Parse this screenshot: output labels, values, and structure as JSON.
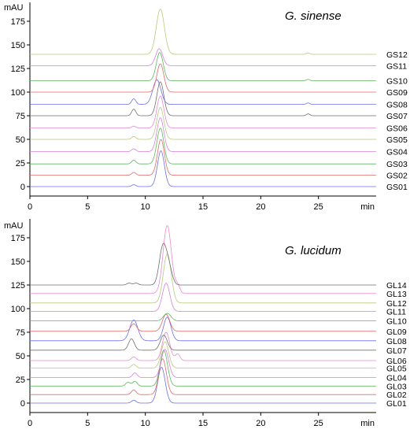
{
  "chart_data": [
    {
      "type": "line",
      "title": "G. sinense",
      "ylabel": "mAU",
      "xlabel": "min",
      "xlim": [
        0,
        30
      ],
      "ylim": [
        -10,
        195
      ],
      "xticks": [
        0,
        5,
        10,
        15,
        20,
        25
      ],
      "yticks": [
        0,
        25,
        50,
        75,
        100,
        125,
        150,
        175
      ],
      "series": [
        {
          "name": "GS01",
          "baseline": 0,
          "color": "#6e6ee8",
          "peaks": [
            [
              9.0,
              2,
              0.18
            ],
            [
              11.35,
              38,
              0.3
            ]
          ]
        },
        {
          "name": "GS02",
          "baseline": 12,
          "color": "#e06a6a",
          "peaks": [
            [
              9.0,
              3,
              0.18
            ],
            [
              11.35,
              38,
              0.3
            ]
          ]
        },
        {
          "name": "GS03",
          "baseline": 24,
          "color": "#5cb85c",
          "peaks": [
            [
              9.0,
              4,
              0.18
            ],
            [
              11.3,
              38,
              0.3
            ]
          ]
        },
        {
          "name": "GS04",
          "baseline": 37,
          "color": "#d982d9",
          "peaks": [
            [
              9.0,
              3,
              0.18
            ],
            [
              11.3,
              36,
              0.3
            ]
          ]
        },
        {
          "name": "GS05",
          "baseline": 50,
          "color": "#b8c97a",
          "peaks": [
            [
              9.0,
              3,
              0.18
            ],
            [
              11.3,
              34,
              0.3
            ]
          ]
        },
        {
          "name": "GS06",
          "baseline": 62,
          "color": "#e98ad0",
          "peaks": [
            [
              9.0,
              2,
              0.18
            ],
            [
              11.3,
              34,
              0.3
            ]
          ]
        },
        {
          "name": "GS07",
          "baseline": 75,
          "color": "#707070",
          "peaks": [
            [
              9.0,
              7,
              0.18
            ],
            [
              11.3,
              36,
              0.3
            ],
            [
              24.1,
              2,
              0.15
            ]
          ]
        },
        {
          "name": "GS08",
          "baseline": 87,
          "color": "#6e6ee8",
          "peaks": [
            [
              9.0,
              6,
              0.18
            ],
            [
              11.0,
              26,
              0.35
            ],
            [
              24.1,
              1.5,
              0.15
            ]
          ]
        },
        {
          "name": "GS09",
          "baseline": 100,
          "color": "#e06a6a",
          "peaks": [
            [
              11.3,
              30,
              0.3
            ]
          ]
        },
        {
          "name": "GS10",
          "baseline": 112,
          "color": "#5cb85c",
          "peaks": [
            [
              11.25,
              30,
              0.3
            ],
            [
              24.1,
              1.5,
              0.15
            ]
          ]
        },
        {
          "name": "GS11",
          "baseline": 128,
          "color": "#d982d9",
          "peaks": [
            [
              11.2,
              18,
              0.3
            ]
          ]
        },
        {
          "name": "GS12",
          "baseline": 140,
          "color": "#b8c97a",
          "peaks": [
            [
              11.3,
              48,
              0.35
            ],
            [
              24.1,
              1.5,
              0.15
            ]
          ]
        }
      ]
    },
    {
      "type": "line",
      "title": "G. lucidum",
      "ylabel": "mAU",
      "xlabel": "min",
      "xlim": [
        0,
        30
      ],
      "ylim": [
        -10,
        195
      ],
      "xticks": [
        0,
        5,
        10,
        15,
        20,
        25
      ],
      "yticks": [
        0,
        25,
        50,
        75,
        100,
        125,
        150,
        175
      ],
      "series": [
        {
          "name": "GL01",
          "baseline": 0,
          "color": "#6e6ee8",
          "peaks": [
            [
              9.0,
              3,
              0.2
            ],
            [
              11.4,
              38,
              0.32
            ]
          ]
        },
        {
          "name": "GL02",
          "baseline": 9,
          "color": "#e06a6a",
          "peaks": [
            [
              9.0,
              5,
              0.2
            ],
            [
              11.5,
              38,
              0.32
            ]
          ]
        },
        {
          "name": "GL03",
          "baseline": 18,
          "color": "#5cb85c",
          "peaks": [
            [
              8.5,
              4,
              0.2
            ],
            [
              9.1,
              5,
              0.2
            ],
            [
              11.6,
              38,
              0.32
            ]
          ]
        },
        {
          "name": "GL04",
          "baseline": 27,
          "color": "#d982d9",
          "peaks": [
            [
              9.1,
              5,
              0.2
            ],
            [
              11.7,
              30,
              0.32
            ]
          ]
        },
        {
          "name": "GL05",
          "baseline": 37,
          "color": "#b8c97a",
          "peaks": [
            [
              9.0,
              4,
              0.2
            ],
            [
              11.7,
              28,
              0.32
            ]
          ]
        },
        {
          "name": "GL06",
          "baseline": 45,
          "color": "#e98ad0",
          "peaks": [
            [
              9.0,
              4,
              0.2
            ],
            [
              11.8,
              30,
              0.32
            ],
            [
              12.8,
              7,
              0.2
            ]
          ]
        },
        {
          "name": "GL07",
          "baseline": 56,
          "color": "#707070",
          "peaks": [
            [
              8.8,
              12,
              0.25
            ],
            [
              11.6,
              16,
              0.3
            ]
          ]
        },
        {
          "name": "GL08",
          "baseline": 66,
          "color": "#6e6ee8",
          "peaks": [
            [
              9.0,
              22,
              0.35
            ],
            [
              11.9,
              25,
              0.32
            ]
          ]
        },
        {
          "name": "GL09",
          "baseline": 76,
          "color": "#e06a6a",
          "peaks": [
            [
              9.0,
              8,
              0.25
            ],
            [
              11.8,
              18,
              0.32
            ]
          ]
        },
        {
          "name": "GL10",
          "baseline": 87,
          "color": "#5cb85c",
          "peaks": [
            [
              11.9,
              8,
              0.32
            ]
          ]
        },
        {
          "name": "GL11",
          "baseline": 97,
          "color": "#d982d9",
          "peaks": [
            [
              11.8,
              30,
              0.32
            ]
          ]
        },
        {
          "name": "GL12",
          "baseline": 106,
          "color": "#b8c97a",
          "peaks": [
            [
              11.9,
              52,
              0.34
            ]
          ]
        },
        {
          "name": "GL13",
          "baseline": 116,
          "color": "#e98ad0",
          "peaks": [
            [
              11.9,
              72,
              0.36
            ],
            [
              12.8,
              8,
              0.2
            ]
          ]
        },
        {
          "name": "GL14",
          "baseline": 125,
          "color": "#707070",
          "peaks": [
            [
              8.6,
              2,
              0.2
            ],
            [
              9.2,
              2,
              0.2
            ],
            [
              11.5,
              38,
              0.3
            ],
            [
              12.0,
              20,
              0.3
            ]
          ]
        }
      ]
    }
  ]
}
